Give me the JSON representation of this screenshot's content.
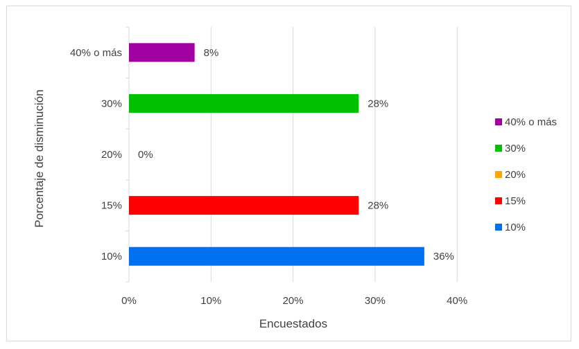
{
  "chart_data": {
    "type": "bar",
    "orientation": "horizontal",
    "categories": [
      "10%",
      "15%",
      "20%",
      "30%",
      "40% o más"
    ],
    "values": [
      36,
      28,
      0,
      28,
      8
    ],
    "data_labels": [
      "36%",
      "28%",
      "0%",
      "28%",
      "8%"
    ],
    "colors": [
      "#0070f0",
      "#ff0000",
      "#ffa500",
      "#00c000",
      "#a000a0"
    ],
    "xlabel": "Encuestados",
    "ylabel": "Porcentaje de disminución",
    "xlim": [
      0,
      40
    ],
    "xticks": [
      "0%",
      "10%",
      "20%",
      "30%",
      "40%"
    ],
    "grid": true,
    "legend_position": "right",
    "legend": [
      {
        "label": "40% o más",
        "color": "#a000a0"
      },
      {
        "label": "30%",
        "color": "#00c000"
      },
      {
        "label": "20%",
        "color": "#ffa500"
      },
      {
        "label": "15%",
        "color": "#ff0000"
      },
      {
        "label": "10%",
        "color": "#0070f0"
      }
    ]
  }
}
